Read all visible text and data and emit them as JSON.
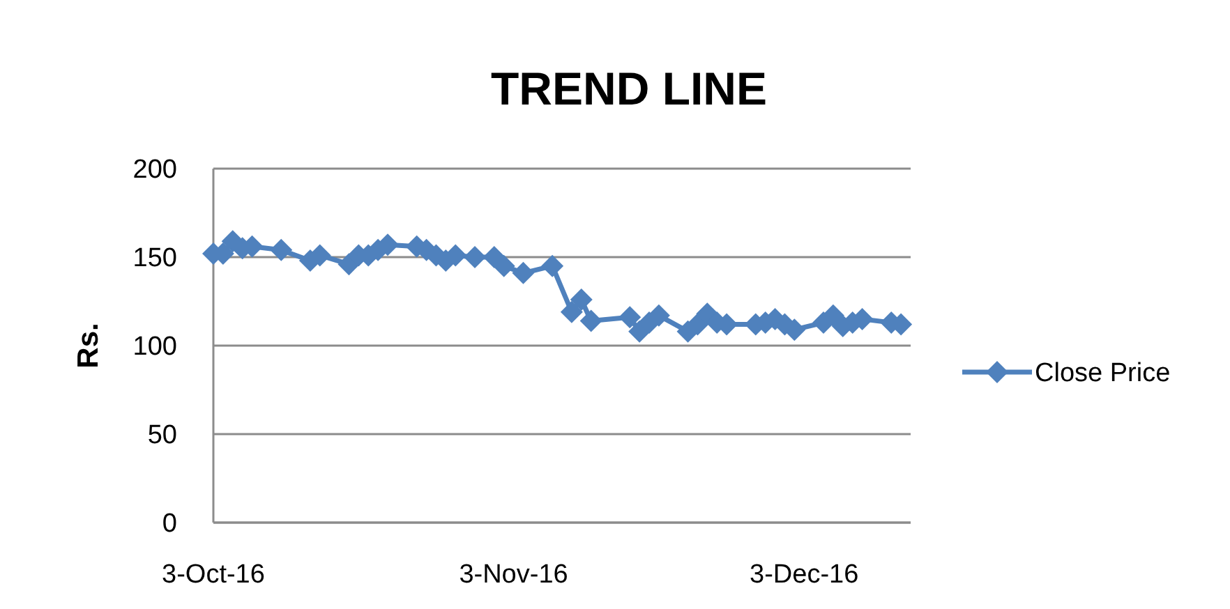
{
  "chart_data": {
    "type": "line",
    "title": "TREND LINE",
    "ylabel": "Rs.",
    "x": [
      "2016-10-03",
      "2016-10-04",
      "2016-10-05",
      "2016-10-06",
      "2016-10-07",
      "2016-10-10",
      "2016-10-13",
      "2016-10-14",
      "2016-10-17",
      "2016-10-18",
      "2016-10-19",
      "2016-10-20",
      "2016-10-21",
      "2016-10-24",
      "2016-10-25",
      "2016-10-26",
      "2016-10-27",
      "2016-10-28",
      "2016-10-30",
      "2016-11-01",
      "2016-11-02",
      "2016-11-04",
      "2016-11-07",
      "2016-11-09",
      "2016-11-10",
      "2016-11-11",
      "2016-11-15",
      "2016-11-16",
      "2016-11-17",
      "2016-11-18",
      "2016-11-21",
      "2016-11-22",
      "2016-11-23",
      "2016-11-24",
      "2016-11-25",
      "2016-11-28",
      "2016-11-29",
      "2016-11-30",
      "2016-12-01",
      "2016-12-02",
      "2016-12-05",
      "2016-12-06",
      "2016-12-07",
      "2016-12-08",
      "2016-12-09",
      "2016-12-12",
      "2016-12-13"
    ],
    "series": [
      {
        "name": "Close Price",
        "color": "#4f81bd",
        "values": [
          152,
          152,
          159,
          155,
          156,
          154,
          148,
          151,
          146,
          151,
          151,
          154,
          157,
          156,
          154,
          151,
          148,
          151,
          150,
          150,
          145,
          141,
          145,
          119,
          126,
          114,
          116,
          108,
          113,
          117,
          108,
          112,
          118,
          113,
          112,
          112,
          113,
          115,
          112,
          109,
          113,
          117,
          111,
          113,
          115,
          113,
          112
        ]
      }
    ],
    "xlim": [
      "2016-10-03",
      "2016-12-14"
    ],
    "xticks": [
      {
        "value": "2016-10-03",
        "label": "3-Oct-16"
      },
      {
        "value": "2016-11-03",
        "label": "3-Nov-16"
      },
      {
        "value": "2016-12-03",
        "label": "3-Dec-16"
      }
    ],
    "ylim": [
      0,
      200
    ],
    "yticks": [
      0,
      50,
      100,
      150,
      200
    ],
    "grid": "y",
    "legend": "right",
    "marker": "diamond",
    "line_style": "solid"
  }
}
